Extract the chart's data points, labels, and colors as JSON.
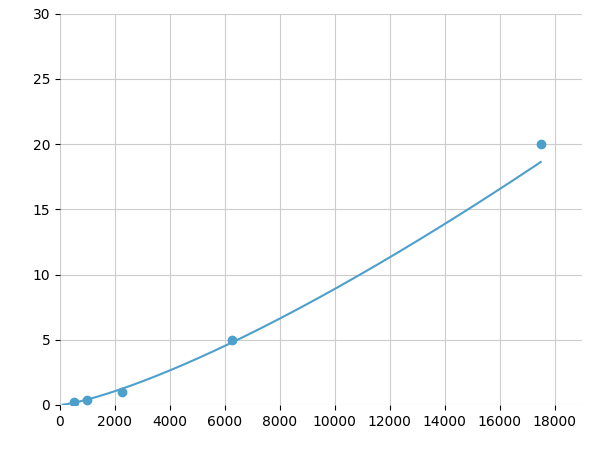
{
  "x_points": [
    500,
    1000,
    2250,
    6250,
    17500
  ],
  "y_points": [
    0.2,
    0.4,
    1.0,
    5.0,
    20.0
  ],
  "line_color": "#4d9fcc",
  "marker_color": "#4d9fcc",
  "marker_size": 6,
  "xlim": [
    0,
    19000
  ],
  "ylim": [
    0,
    30
  ],
  "xticks": [
    0,
    2000,
    4000,
    6000,
    8000,
    10000,
    12000,
    14000,
    16000,
    18000
  ],
  "yticks": [
    0,
    5,
    10,
    15,
    20,
    25,
    30
  ],
  "grid_color": "#cccccc",
  "background_color": "#ffffff",
  "tick_fontsize": 10,
  "linewidth": 1.5
}
